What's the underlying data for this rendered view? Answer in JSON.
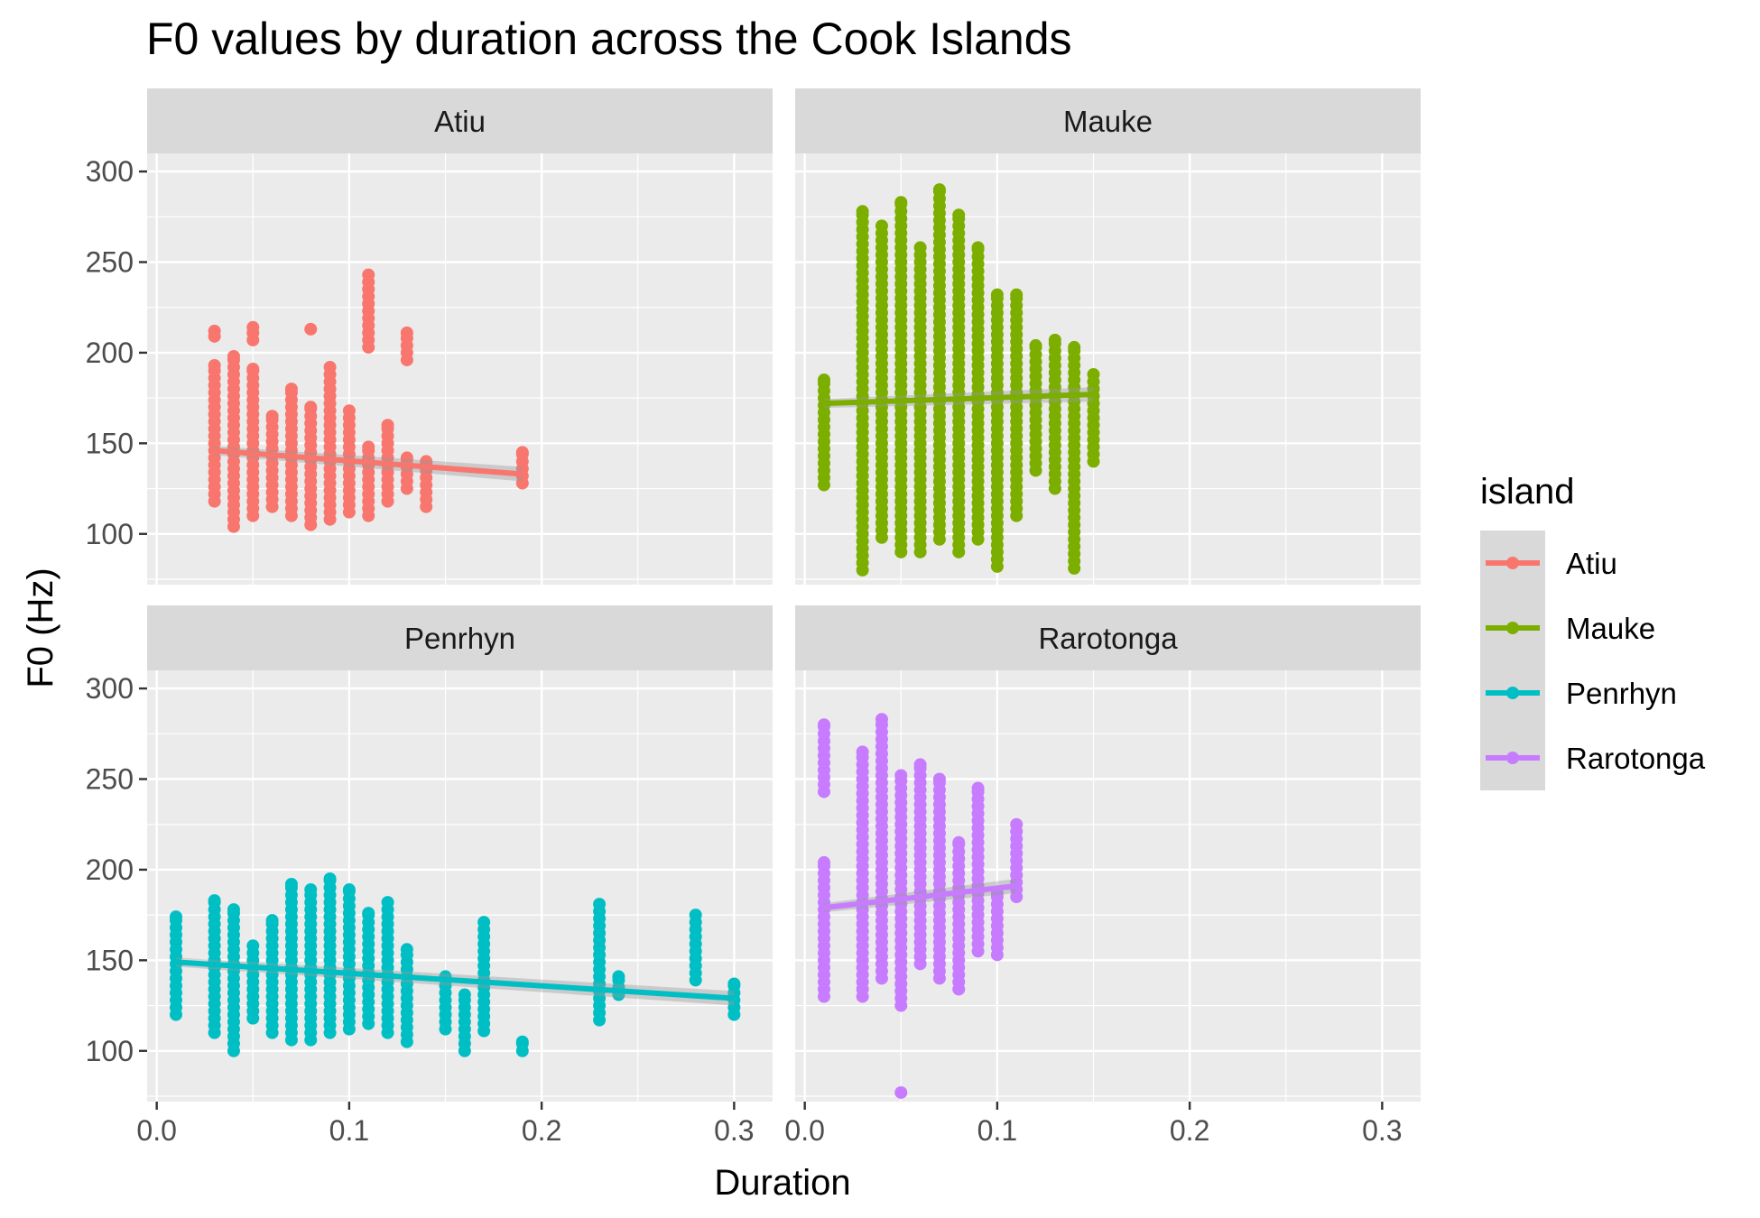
{
  "chart_data": {
    "type": "scatter",
    "title": "F0 values by duration across the Cook Islands",
    "xlabel": "Duration",
    "ylabel": "F0 (Hz)",
    "xlim": [
      -0.005,
      0.32
    ],
    "ylim": [
      72,
      310
    ],
    "x_ticks": [
      0.0,
      0.1,
      0.2,
      0.3
    ],
    "x_tick_labels": [
      "0.0",
      "0.1",
      "0.2",
      "0.3"
    ],
    "y_ticks": [
      100,
      150,
      200,
      250,
      300
    ],
    "y_tick_labels": [
      "100",
      "150",
      "200",
      "250",
      "300"
    ],
    "grid": true,
    "facet_by": "island",
    "legend": {
      "title": "island",
      "position": "right"
    },
    "series": [
      {
        "name": "Atiu",
        "color": "#F8766D",
        "columns": [
          {
            "x": 0.03,
            "y_min": 118,
            "y_max": 193
          },
          {
            "x": 0.03,
            "y_min": 209,
            "y_max": 212
          },
          {
            "x": 0.04,
            "y_min": 104,
            "y_max": 198
          },
          {
            "x": 0.05,
            "y_min": 110,
            "y_max": 191
          },
          {
            "x": 0.05,
            "y_min": 207,
            "y_max": 214
          },
          {
            "x": 0.06,
            "y_min": 115,
            "y_max": 165
          },
          {
            "x": 0.07,
            "y_min": 110,
            "y_max": 180
          },
          {
            "x": 0.08,
            "y_min": 105,
            "y_max": 170
          },
          {
            "x": 0.08,
            "y_min": 213,
            "y_max": 213
          },
          {
            "x": 0.09,
            "y_min": 108,
            "y_max": 192
          },
          {
            "x": 0.1,
            "y_min": 112,
            "y_max": 168
          },
          {
            "x": 0.11,
            "y_min": 110,
            "y_max": 148
          },
          {
            "x": 0.11,
            "y_min": 203,
            "y_max": 243
          },
          {
            "x": 0.12,
            "y_min": 118,
            "y_max": 160
          },
          {
            "x": 0.13,
            "y_min": 125,
            "y_max": 142
          },
          {
            "x": 0.13,
            "y_min": 196,
            "y_max": 211
          },
          {
            "x": 0.14,
            "y_min": 115,
            "y_max": 140
          },
          {
            "x": 0.19,
            "y_min": 128,
            "y_max": 145
          }
        ],
        "fit": {
          "x": [
            0.03,
            0.19
          ],
          "y": [
            146,
            133
          ]
        }
      },
      {
        "name": "Mauke",
        "color": "#7CAE00",
        "columns": [
          {
            "x": 0.01,
            "y_min": 127,
            "y_max": 185
          },
          {
            "x": 0.03,
            "y_min": 80,
            "y_max": 278
          },
          {
            "x": 0.04,
            "y_min": 98,
            "y_max": 270
          },
          {
            "x": 0.05,
            "y_min": 90,
            "y_max": 283
          },
          {
            "x": 0.06,
            "y_min": 90,
            "y_max": 258
          },
          {
            "x": 0.07,
            "y_min": 97,
            "y_max": 290
          },
          {
            "x": 0.08,
            "y_min": 90,
            "y_max": 276
          },
          {
            "x": 0.09,
            "y_min": 97,
            "y_max": 258
          },
          {
            "x": 0.1,
            "y_min": 82,
            "y_max": 232
          },
          {
            "x": 0.11,
            "y_min": 110,
            "y_max": 232
          },
          {
            "x": 0.12,
            "y_min": 135,
            "y_max": 204
          },
          {
            "x": 0.13,
            "y_min": 125,
            "y_max": 207
          },
          {
            "x": 0.14,
            "y_min": 81,
            "y_max": 203
          },
          {
            "x": 0.15,
            "y_min": 140,
            "y_max": 188
          }
        ],
        "fit": {
          "x": [
            0.01,
            0.15
          ],
          "y": [
            172,
            177
          ]
        }
      },
      {
        "name": "Penrhyn",
        "color": "#00BFC4",
        "columns": [
          {
            "x": 0.01,
            "y_min": 120,
            "y_max": 174
          },
          {
            "x": 0.03,
            "y_min": 110,
            "y_max": 183
          },
          {
            "x": 0.04,
            "y_min": 100,
            "y_max": 178
          },
          {
            "x": 0.05,
            "y_min": 118,
            "y_max": 158
          },
          {
            "x": 0.06,
            "y_min": 110,
            "y_max": 172
          },
          {
            "x": 0.07,
            "y_min": 106,
            "y_max": 192
          },
          {
            "x": 0.08,
            "y_min": 106,
            "y_max": 189
          },
          {
            "x": 0.09,
            "y_min": 110,
            "y_max": 195
          },
          {
            "x": 0.1,
            "y_min": 112,
            "y_max": 189
          },
          {
            "x": 0.11,
            "y_min": 115,
            "y_max": 176
          },
          {
            "x": 0.12,
            "y_min": 110,
            "y_max": 182
          },
          {
            "x": 0.13,
            "y_min": 105,
            "y_max": 156
          },
          {
            "x": 0.15,
            "y_min": 112,
            "y_max": 141
          },
          {
            "x": 0.16,
            "y_min": 100,
            "y_max": 131
          },
          {
            "x": 0.17,
            "y_min": 111,
            "y_max": 171
          },
          {
            "x": 0.19,
            "y_min": 100,
            "y_max": 105
          },
          {
            "x": 0.23,
            "y_min": 117,
            "y_max": 181
          },
          {
            "x": 0.24,
            "y_min": 131,
            "y_max": 141
          },
          {
            "x": 0.28,
            "y_min": 139,
            "y_max": 175
          },
          {
            "x": 0.3,
            "y_min": 120,
            "y_max": 137
          }
        ],
        "fit": {
          "x": [
            0.01,
            0.3
          ],
          "y": [
            149,
            129
          ]
        }
      },
      {
        "name": "Rarotonga",
        "color": "#C77CFF",
        "columns": [
          {
            "x": 0.01,
            "y_min": 130,
            "y_max": 204
          },
          {
            "x": 0.01,
            "y_min": 243,
            "y_max": 280
          },
          {
            "x": 0.03,
            "y_min": 130,
            "y_max": 265
          },
          {
            "x": 0.04,
            "y_min": 140,
            "y_max": 283
          },
          {
            "x": 0.05,
            "y_min": 125,
            "y_max": 252
          },
          {
            "x": 0.05,
            "y_min": 77,
            "y_max": 77
          },
          {
            "x": 0.06,
            "y_min": 148,
            "y_max": 258
          },
          {
            "x": 0.07,
            "y_min": 140,
            "y_max": 250
          },
          {
            "x": 0.08,
            "y_min": 134,
            "y_max": 215
          },
          {
            "x": 0.09,
            "y_min": 155,
            "y_max": 245
          },
          {
            "x": 0.1,
            "y_min": 153,
            "y_max": 187
          },
          {
            "x": 0.11,
            "y_min": 185,
            "y_max": 225
          }
        ],
        "fit": {
          "x": [
            0.01,
            0.11
          ],
          "y": [
            179,
            191
          ]
        }
      }
    ]
  }
}
